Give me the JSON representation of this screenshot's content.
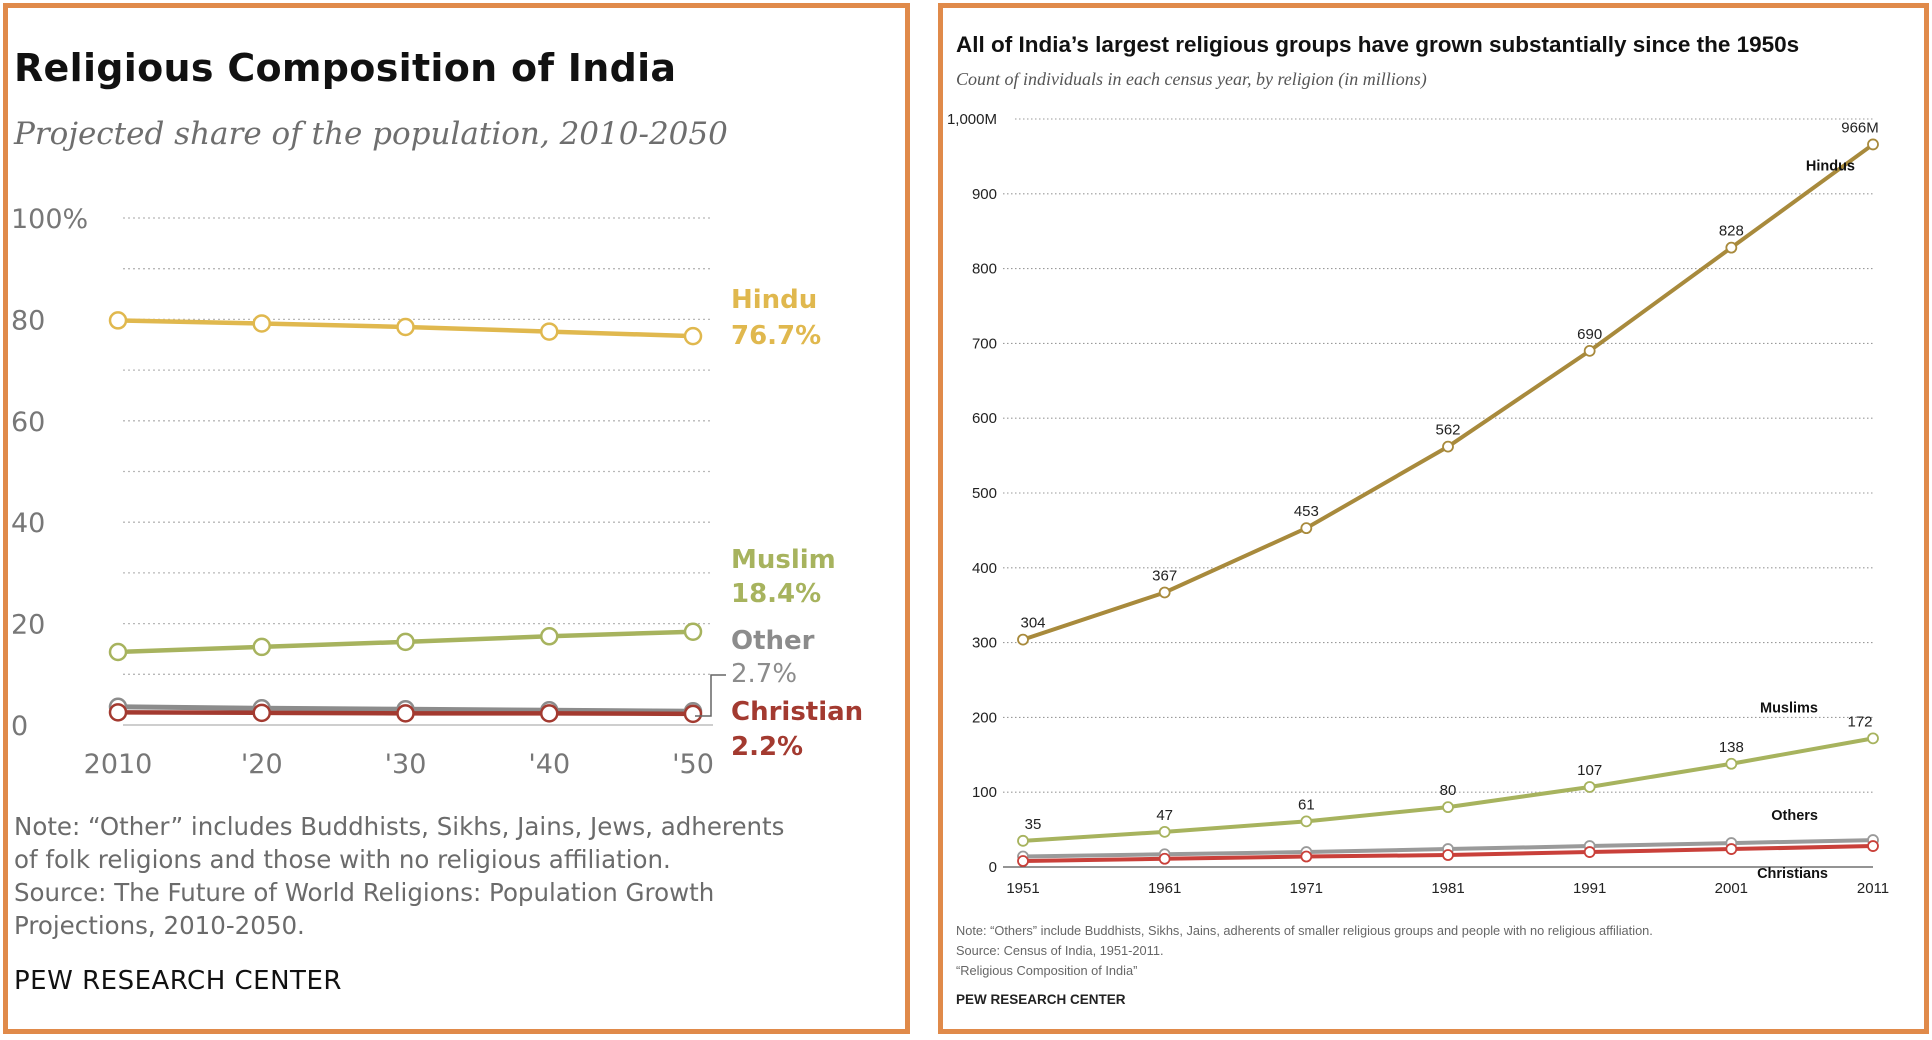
{
  "left": {
    "title": "Religious Composition of India",
    "subtitle": "Projected share of the population, 2010-2050",
    "note_lines": [
      "Note: “Other” includes Buddhists, Sikhs, Jains, Jews, adherents",
      "of folk religions and those with no religious affiliation.",
      "Source: The Future of World Religions: Population Growth",
      "Projections, 2010-2050."
    ],
    "source_org": "PEW RESEARCH CENTER"
  },
  "right": {
    "title": "All of India’s largest religious groups have grown substantially since the 1950s",
    "subtitle": "Count of individuals in each census year, by religion (in millions)",
    "note_lines": [
      "Note: “Others” include Buddhists, Sikhs, Jains, adherents of smaller religious groups and people with no religious affiliation.",
      "Source: Census of India, 1951-2011.",
      "“Religious Composition of India”"
    ],
    "source_org": "PEW RESEARCH CENTER"
  },
  "chart_data": [
    {
      "type": "line",
      "title": "Religious Composition of India",
      "subtitle": "Projected share of the population, 2010-2050",
      "x": [
        2010,
        2020,
        2030,
        2040,
        2050
      ],
      "tick_labels_x": [
        "2010",
        "'20",
        "'30",
        "'40",
        "'50"
      ],
      "tick_labels_y": [
        "100%",
        "80",
        "60",
        "40",
        "20",
        "0"
      ],
      "ylim": [
        0,
        100
      ],
      "grid": true,
      "series": [
        {
          "name": "Hindu",
          "end_label": "76.7%",
          "color": "#e0b84e",
          "values": [
            79.8,
            79.2,
            78.5,
            77.6,
            76.7
          ]
        },
        {
          "name": "Muslim",
          "end_label": "18.4%",
          "color": "#a7b35e",
          "values": [
            14.4,
            15.4,
            16.4,
            17.5,
            18.4
          ]
        },
        {
          "name": "Other",
          "end_label": "2.7%",
          "color": "#8c8c8c",
          "values": [
            3.6,
            3.3,
            3.1,
            2.9,
            2.7
          ]
        },
        {
          "name": "Christian",
          "end_label": "2.2%",
          "color": "#a33a30",
          "values": [
            2.5,
            2.4,
            2.3,
            2.3,
            2.2
          ]
        }
      ]
    },
    {
      "type": "line",
      "title": "All of India’s largest religious groups have grown substantially since the 1950s",
      "subtitle": "Count of individuals in each census year, by religion (in millions)",
      "x": [
        1951,
        1961,
        1971,
        1981,
        1991,
        2001,
        2011
      ],
      "tick_labels_x": [
        "1951",
        "1961",
        "1971",
        "1981",
        "1991",
        "2001",
        "2011"
      ],
      "tick_labels_y": [
        "1,000M",
        "900",
        "800",
        "700",
        "600",
        "500",
        "400",
        "300",
        "200",
        "100",
        "0"
      ],
      "ylim": [
        0,
        1000
      ],
      "grid": true,
      "series": [
        {
          "name": "Hindus",
          "color": "#a88a3c",
          "values": [
            304,
            367,
            453,
            562,
            690,
            828,
            966
          ],
          "data_labels": [
            "304",
            "367",
            "453",
            "562",
            "690",
            "828",
            "966M"
          ]
        },
        {
          "name": "Muslims",
          "color": "#a7b35e",
          "values": [
            35,
            47,
            61,
            80,
            107,
            138,
            172
          ],
          "data_labels": [
            "35",
            "47",
            "61",
            "80",
            "107",
            "138",
            "172"
          ]
        },
        {
          "name": "Others",
          "color": "#9a9a9a",
          "values": [
            14,
            17,
            20,
            24,
            28,
            32,
            36
          ]
        },
        {
          "name": "Christians",
          "color": "#c9403a",
          "values": [
            8,
            11,
            14,
            16,
            20,
            24,
            28
          ]
        }
      ]
    }
  ],
  "colors": {
    "border": "#e08a4a",
    "hindu_left": "#e0b84e",
    "hindu_right": "#a88a3c",
    "muslim": "#a7b35e",
    "other": "#8c8c8c",
    "christian": "#a33a30"
  }
}
